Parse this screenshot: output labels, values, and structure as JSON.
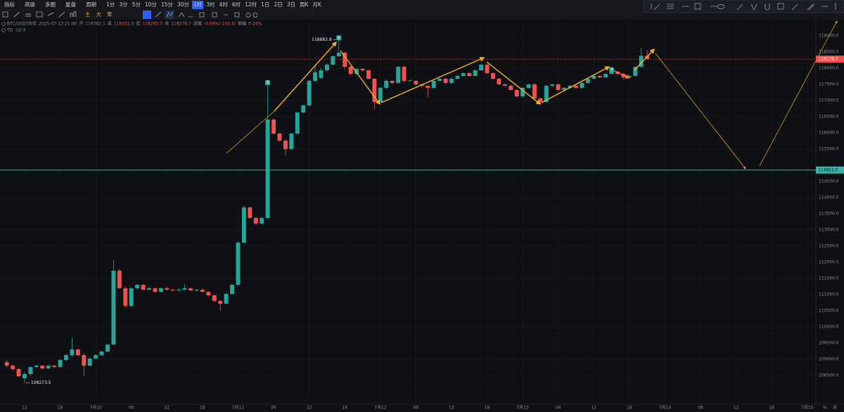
{
  "toolbar": {
    "items": [
      "指标",
      "高级",
      "多图",
      "复盘",
      "周期",
      "1分",
      "3分",
      "5分",
      "10分",
      "15分",
      "30分",
      "1时",
      "3时",
      "4时",
      "6时",
      "12时",
      "1日",
      "2日",
      "3日",
      "周K",
      "月K"
    ],
    "active": 11,
    "tools": [
      "主",
      "大",
      "筹"
    ]
  },
  "info": {
    "symbol": "BTC/USDT永续",
    "time": "2025-07-13 21:00",
    "fields": [
      {
        "label": "开",
        "value": "118382.1"
      },
      {
        "label": "高",
        "value": "118552.0"
      },
      {
        "label": "低",
        "value": "118265.5"
      },
      {
        "label": "收",
        "value": "118278.7"
      },
      {
        "label": "涨幅",
        "value": "-0.09%(-103.4)"
      },
      {
        "label": "振幅",
        "value": "0.24%"
      }
    ],
    "indicator": {
      "name": "TD",
      "value": "Up:3"
    }
  },
  "axis_corner": [
    "%",
    "对"
  ],
  "chart_data": {
    "type": "candlestick",
    "colors": {
      "up": "#26a69a",
      "down": "#ef5350"
    },
    "xlim": [
      -1.15,
      136.45
    ],
    "ylim": [
      107610,
      119500
    ],
    "xticks": [
      {
        "value": 3,
        "label": "12"
      },
      {
        "value": 9,
        "label": "18"
      },
      {
        "value": 15,
        "label": "7月10"
      },
      {
        "value": 21,
        "label": "06"
      },
      {
        "value": 27,
        "label": "12"
      },
      {
        "value": 33,
        "label": "18"
      },
      {
        "value": 39,
        "label": "7月11"
      },
      {
        "value": 45,
        "label": "06"
      },
      {
        "value": 51,
        "label": "12"
      },
      {
        "value": 57,
        "label": "18"
      },
      {
        "value": 63,
        "label": "7月12"
      },
      {
        "value": 69,
        "label": "06"
      },
      {
        "value": 75,
        "label": "12"
      },
      {
        "value": 81,
        "label": "18"
      },
      {
        "value": 87,
        "label": "7月13"
      },
      {
        "value": 93,
        "label": "06"
      },
      {
        "value": 99,
        "label": "12"
      },
      {
        "value": 105,
        "label": "18"
      },
      {
        "value": 111,
        "label": "7月14"
      },
      {
        "value": 117,
        "label": "06"
      },
      {
        "value": 123,
        "label": "12"
      },
      {
        "value": 129,
        "label": "18"
      },
      {
        "value": 135,
        "label": "7月15"
      }
    ],
    "yticks": [
      {
        "value": 119000,
        "label": "119000.0"
      },
      {
        "value": 118500,
        "label": "118500.0"
      },
      {
        "value": 118000,
        "label": "118000.0"
      },
      {
        "value": 117500,
        "label": "117500.0"
      },
      {
        "value": 117000,
        "label": "117000.0"
      },
      {
        "value": 116500,
        "label": "116500.0"
      },
      {
        "value": 116000,
        "label": "116000.0"
      },
      {
        "value": 115500,
        "label": "115500.0"
      },
      {
        "value": 114500,
        "label": "114500.0"
      },
      {
        "value": 114000,
        "label": "114000.0"
      },
      {
        "value": 113500,
        "label": "113500.0"
      },
      {
        "value": 113000,
        "label": "113000.0"
      },
      {
        "value": 112500,
        "label": "112500.0"
      },
      {
        "value": 112000,
        "label": "112000.0"
      },
      {
        "value": 111500,
        "label": "111500.0"
      },
      {
        "value": 111000,
        "label": "111000.0"
      },
      {
        "value": 110500,
        "label": "110500.0"
      },
      {
        "value": 110000,
        "label": "110000.0"
      },
      {
        "value": 109500,
        "label": "109500.0"
      },
      {
        "value": 109000,
        "label": "109000.0"
      },
      {
        "value": 108500,
        "label": "108500.0"
      }
    ],
    "candles": [
      [
        108913,
        108980,
        108760,
        108804
      ],
      [
        108804,
        108850,
        108660,
        108696
      ],
      [
        108696,
        108740,
        108450,
        108478
      ],
      [
        108413,
        108600,
        108273.5,
        108543
      ],
      [
        108543,
        108780,
        108500,
        108761
      ],
      [
        108761,
        108820,
        108720,
        108804
      ],
      [
        108804,
        108830,
        108690,
        108717
      ],
      [
        108717,
        108810,
        108700,
        108804
      ],
      [
        108804,
        108820,
        108720,
        108761
      ],
      [
        108761,
        109000,
        108740,
        108978
      ],
      [
        108978,
        109170,
        108950,
        109130
      ],
      [
        109130,
        109674,
        109100,
        109304
      ],
      [
        109304,
        109330,
        109100,
        109130
      ],
      [
        109130,
        109200,
        108478,
        108804
      ],
      [
        108804,
        109050,
        108780,
        109022
      ],
      [
        109022,
        109160,
        109000,
        109130
      ],
      [
        109130,
        109260,
        109100,
        109239
      ],
      [
        109239,
        109480,
        109220,
        109457
      ],
      [
        109457,
        112065,
        109430,
        111739
      ],
      [
        111739,
        111800,
        111180,
        111196
      ],
      [
        111196,
        111250,
        110600,
        110652
      ],
      [
        110652,
        111220,
        110620,
        111196
      ],
      [
        111196,
        111320,
        111150,
        111304
      ],
      [
        111304,
        111330,
        111120,
        111152
      ],
      [
        111152,
        111250,
        111130,
        111196
      ],
      [
        111196,
        111230,
        111060,
        111087
      ],
      [
        111087,
        111220,
        111070,
        111196
      ],
      [
        111196,
        111240,
        111130,
        111152
      ],
      [
        111152,
        111180,
        111100,
        111130
      ],
      [
        111130,
        111200,
        111100,
        111152
      ],
      [
        111152,
        111330,
        111130,
        111196
      ],
      [
        111196,
        111220,
        111100,
        111130
      ],
      [
        111130,
        111170,
        111100,
        111152
      ],
      [
        111152,
        111180,
        111060,
        111087
      ],
      [
        111087,
        111100,
        110950,
        110978
      ],
      [
        110978,
        111000,
        110780,
        110804
      ],
      [
        110804,
        110830,
        110500,
        110717
      ],
      [
        110717,
        111060,
        110700,
        111022
      ],
      [
        111022,
        111330,
        111000,
        111304
      ],
      [
        111304,
        112650,
        111280,
        112609
      ],
      [
        112609,
        113750,
        112580,
        113696
      ],
      [
        113696,
        113720,
        113350,
        113370
      ],
      [
        113370,
        113400,
        113150,
        113196
      ],
      [
        113196,
        113400,
        113170,
        113370
      ],
      [
        113370,
        117500,
        113340,
        116413
      ],
      [
        116413,
        116450,
        115950,
        115978
      ],
      [
        115978,
        116000,
        115730,
        115761
      ],
      [
        115761,
        115800,
        115300,
        115500
      ],
      [
        115500,
        116000,
        115480,
        115978
      ],
      [
        115978,
        116650,
        115960,
        116631
      ],
      [
        116631,
        116870,
        116600,
        116848
      ],
      [
        116848,
        117650,
        116830,
        117609
      ],
      [
        117609,
        118100,
        117590,
        117870
      ],
      [
        117700,
        118000,
        117680,
        117935
      ],
      [
        117935,
        118150,
        117900,
        118109
      ],
      [
        118109,
        118400,
        118090,
        118370
      ],
      [
        118370,
        118882.8,
        118350,
        118478
      ],
      [
        118478,
        118500,
        117980,
        118044
      ],
      [
        118044,
        118070,
        117780,
        117826
      ],
      [
        117826,
        118000,
        117800,
        117978
      ],
      [
        117978,
        118010,
        117900,
        117935
      ],
      [
        117935,
        117960,
        117650,
        117674
      ],
      [
        117674,
        117700,
        116739,
        116957
      ],
      [
        116957,
        117420,
        116930,
        117391
      ],
      [
        117391,
        117650,
        117370,
        117609
      ],
      [
        117609,
        117630,
        117500,
        117544
      ],
      [
        117544,
        118060,
        117520,
        118044
      ],
      [
        118044,
        118070,
        117560,
        117609
      ],
      [
        117609,
        117640,
        117580,
        117620
      ],
      [
        117609,
        117630,
        117450,
        117500
      ],
      [
        117500,
        117520,
        117400,
        117457
      ],
      [
        117457,
        117480,
        117100,
        117391
      ],
      [
        117391,
        117630,
        117370,
        117609
      ],
      [
        117609,
        117700,
        117590,
        117674
      ],
      [
        117674,
        117700,
        117500,
        117544
      ],
      [
        117544,
        117700,
        117520,
        117674
      ],
      [
        117674,
        117780,
        117650,
        117761
      ],
      [
        117761,
        117870,
        117740,
        117848
      ],
      [
        117848,
        117880,
        117740,
        117761
      ],
      [
        117761,
        117960,
        117740,
        117935
      ],
      [
        117935,
        118130,
        117910,
        118109
      ],
      [
        118109,
        118130,
        117820,
        117848
      ],
      [
        117848,
        117870,
        117650,
        117674
      ],
      [
        117674,
        117700,
        117480,
        117500
      ],
      [
        117500,
        117520,
        117430,
        117457
      ],
      [
        117457,
        117480,
        117300,
        117326
      ],
      [
        117326,
        117350,
        117100,
        117130
      ],
      [
        117130,
        117420,
        117100,
        117391
      ],
      [
        117391,
        117520,
        117370,
        117500
      ],
      [
        117500,
        117520,
        117040,
        117065
      ],
      [
        117065,
        117090,
        116900,
        116957
      ],
      [
        116957,
        117480,
        116930,
        117457
      ],
      [
        117457,
        117520,
        117430,
        117500
      ],
      [
        117500,
        117520,
        117300,
        117326
      ],
      [
        117326,
        117420,
        117300,
        117391
      ],
      [
        117391,
        117480,
        117370,
        117457
      ],
      [
        117457,
        117480,
        117370,
        117391
      ],
      [
        117391,
        117560,
        117370,
        117544
      ],
      [
        117544,
        117700,
        117520,
        117674
      ],
      [
        117674,
        117780,
        117650,
        117761
      ],
      [
        117761,
        117780,
        117690,
        117717
      ],
      [
        117717,
        117840,
        117700,
        117826
      ],
      [
        117826,
        117900,
        117800,
        117891
      ],
      [
        117891,
        117910,
        117800,
        117826
      ],
      [
        117826,
        117850,
        117650,
        117717
      ],
      [
        117717,
        117780,
        117690,
        117761
      ],
      [
        117761,
        118050,
        117740,
        118044
      ],
      [
        118044,
        118631,
        118020,
        118382.1
      ],
      [
        118382.1,
        118552.0,
        118265.5,
        118278.7
      ]
    ],
    "annotations": {
      "high": 118882.8,
      "low": 108273.5
    },
    "current_price": 118278.7,
    "level": {
      "value": 114852,
      "label": "114852.0"
    },
    "markers": [
      {
        "x": 44,
        "count": 9
      },
      {
        "x": 56,
        "count": 6
      },
      {
        "x": 102,
        "count": 9
      }
    ]
  }
}
